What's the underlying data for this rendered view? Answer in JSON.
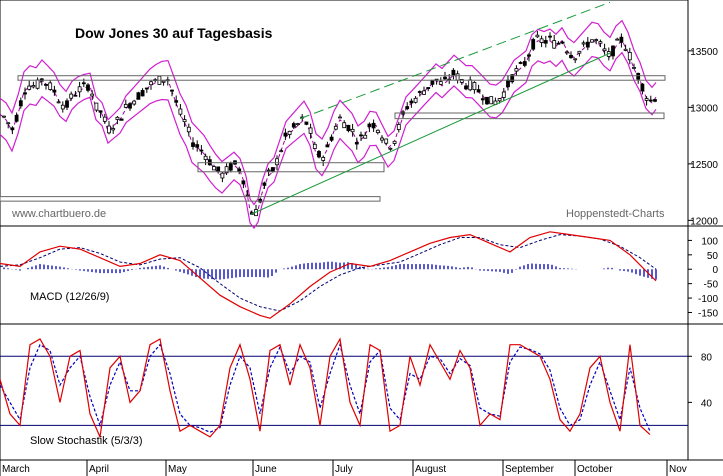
{
  "chart_data": [
    {
      "type": "candlestick",
      "title": "Dow Jones 30 auf Tagesbasis",
      "watermark_left": "www.chartbuero.de",
      "watermark_right": "Hoppenstedt-Charts",
      "ylim": [
        11950,
        13950
      ],
      "yticks": [
        "13500",
        "13000",
        "12500",
        "12000"
      ],
      "months": [
        "March",
        "April",
        "May",
        "June",
        "July",
        "August",
        "September",
        "October",
        "Nov"
      ],
      "close_path": [
        [
          0,
          12950
        ],
        [
          6,
          12900
        ],
        [
          12,
          12800
        ],
        [
          18,
          12950
        ],
        [
          24,
          13150
        ],
        [
          30,
          13200
        ],
        [
          36,
          13180
        ],
        [
          42,
          13250
        ],
        [
          48,
          13200
        ],
        [
          54,
          13150
        ],
        [
          60,
          13050
        ],
        [
          66,
          13000
        ],
        [
          72,
          13100
        ],
        [
          78,
          13150
        ],
        [
          84,
          13180
        ],
        [
          90,
          13200
        ],
        [
          96,
          13000
        ],
        [
          102,
          12950
        ],
        [
          108,
          12800
        ],
        [
          114,
          12850
        ],
        [
          120,
          12900
        ],
        [
          126,
          13000
        ],
        [
          132,
          13050
        ],
        [
          138,
          13100
        ],
        [
          144,
          13150
        ],
        [
          150,
          13200
        ],
        [
          156,
          13230
        ],
        [
          162,
          13250
        ],
        [
          168,
          13250
        ],
        [
          174,
          13100
        ],
        [
          180,
          12950
        ],
        [
          186,
          12850
        ],
        [
          192,
          12700
        ],
        [
          198,
          12650
        ],
        [
          204,
          12600
        ],
        [
          210,
          12520
        ],
        [
          216,
          12450
        ],
        [
          222,
          12400
        ],
        [
          228,
          12450
        ],
        [
          234,
          12500
        ],
        [
          240,
          12450
        ],
        [
          246,
          12300
        ],
        [
          250,
          12100
        ],
        [
          254,
          12050
        ],
        [
          258,
          12100
        ],
        [
          262,
          12250
        ],
        [
          268,
          12400
        ],
        [
          274,
          12450
        ],
        [
          280,
          12600
        ],
        [
          286,
          12750
        ],
        [
          292,
          12800
        ],
        [
          298,
          12850
        ],
        [
          304,
          12900
        ],
        [
          310,
          12800
        ],
        [
          316,
          12600
        ],
        [
          322,
          12550
        ],
        [
          328,
          12650
        ],
        [
          334,
          12800
        ],
        [
          340,
          12900
        ],
        [
          346,
          12850
        ],
        [
          352,
          12800
        ],
        [
          358,
          12700
        ],
        [
          364,
          12750
        ],
        [
          370,
          12850
        ],
        [
          376,
          12850
        ],
        [
          382,
          12750
        ],
        [
          388,
          12650
        ],
        [
          394,
          12700
        ],
        [
          400,
          12850
        ],
        [
          406,
          13000
        ],
        [
          412,
          13050
        ],
        [
          418,
          13100
        ],
        [
          424,
          13150
        ],
        [
          430,
          13200
        ],
        [
          436,
          13250
        ],
        [
          442,
          13200
        ],
        [
          448,
          13250
        ],
        [
          454,
          13300
        ],
        [
          460,
          13250
        ],
        [
          466,
          13200
        ],
        [
          472,
          13200
        ],
        [
          478,
          13150
        ],
        [
          484,
          13100
        ],
        [
          490,
          13050
        ],
        [
          496,
          13050
        ],
        [
          502,
          13100
        ],
        [
          508,
          13200
        ],
        [
          514,
          13300
        ],
        [
          520,
          13350
        ],
        [
          526,
          13400
        ],
        [
          532,
          13550
        ],
        [
          538,
          13600
        ],
        [
          544,
          13580
        ],
        [
          550,
          13600
        ],
        [
          556,
          13550
        ],
        [
          562,
          13600
        ],
        [
          568,
          13500
        ],
        [
          574,
          13450
        ],
        [
          580,
          13500
        ],
        [
          586,
          13550
        ],
        [
          592,
          13600
        ],
        [
          598,
          13580
        ],
        [
          604,
          13500
        ],
        [
          610,
          13450
        ],
        [
          616,
          13550
        ],
        [
          622,
          13600
        ],
        [
          628,
          13500
        ],
        [
          634,
          13350
        ],
        [
          640,
          13250
        ],
        [
          646,
          13100
        ],
        [
          652,
          13050
        ],
        [
          656,
          13100
        ]
      ]
    },
    {
      "type": "line",
      "label": "MACD (12/26/9)",
      "ylim": [
        -190,
        150
      ],
      "yticks": [
        "100",
        "50",
        "0",
        "-50",
        "-100",
        "-150"
      ],
      "macd": [
        [
          0,
          20
        ],
        [
          20,
          10
        ],
        [
          40,
          60
        ],
        [
          60,
          80
        ],
        [
          80,
          70
        ],
        [
          100,
          40
        ],
        [
          120,
          10
        ],
        [
          140,
          20
        ],
        [
          160,
          50
        ],
        [
          180,
          30
        ],
        [
          200,
          -30
        ],
        [
          220,
          -90
        ],
        [
          240,
          -130
        ],
        [
          260,
          -160
        ],
        [
          270,
          -170
        ],
        [
          290,
          -120
        ],
        [
          310,
          -60
        ],
        [
          330,
          -10
        ],
        [
          350,
          20
        ],
        [
          370,
          10
        ],
        [
          390,
          30
        ],
        [
          410,
          60
        ],
        [
          430,
          90
        ],
        [
          450,
          110
        ],
        [
          470,
          120
        ],
        [
          490,
          90
        ],
        [
          510,
          60
        ],
        [
          530,
          110
        ],
        [
          550,
          130
        ],
        [
          570,
          120
        ],
        [
          590,
          110
        ],
        [
          610,
          100
        ],
        [
          630,
          50
        ],
        [
          650,
          -20
        ],
        [
          656,
          -40
        ]
      ],
      "signal": [
        [
          0,
          10
        ],
        [
          20,
          15
        ],
        [
          40,
          40
        ],
        [
          60,
          70
        ],
        [
          80,
          75
        ],
        [
          100,
          55
        ],
        [
          120,
          25
        ],
        [
          140,
          15
        ],
        [
          160,
          35
        ],
        [
          180,
          40
        ],
        [
          200,
          5
        ],
        [
          220,
          -50
        ],
        [
          240,
          -100
        ],
        [
          260,
          -130
        ],
        [
          280,
          -145
        ],
        [
          300,
          -110
        ],
        [
          320,
          -60
        ],
        [
          340,
          -20
        ],
        [
          360,
          5
        ],
        [
          380,
          15
        ],
        [
          400,
          25
        ],
        [
          420,
          55
        ],
        [
          440,
          85
        ],
        [
          460,
          110
        ],
        [
          480,
          110
        ],
        [
          500,
          85
        ],
        [
          520,
          75
        ],
        [
          540,
          100
        ],
        [
          560,
          120
        ],
        [
          580,
          115
        ],
        [
          600,
          105
        ],
        [
          620,
          80
        ],
        [
          640,
          40
        ],
        [
          656,
          0
        ]
      ]
    },
    {
      "type": "line",
      "label": "Slow Stochastik (5/3/3)",
      "ylim": [
        0,
        100
      ],
      "yticks": [
        "80",
        "40"
      ],
      "levels": [
        80,
        20
      ],
      "k": [
        [
          0,
          60
        ],
        [
          10,
          30
        ],
        [
          20,
          20
        ],
        [
          30,
          90
        ],
        [
          40,
          95
        ],
        [
          50,
          80
        ],
        [
          60,
          40
        ],
        [
          70,
          80
        ],
        [
          80,
          85
        ],
        [
          90,
          30
        ],
        [
          100,
          10
        ],
        [
          110,
          70
        ],
        [
          120,
          80
        ],
        [
          130,
          40
        ],
        [
          140,
          50
        ],
        [
          150,
          90
        ],
        [
          160,
          95
        ],
        [
          170,
          50
        ],
        [
          180,
          15
        ],
        [
          190,
          20
        ],
        [
          200,
          15
        ],
        [
          210,
          10
        ],
        [
          220,
          20
        ],
        [
          230,
          70
        ],
        [
          240,
          90
        ],
        [
          250,
          60
        ],
        [
          260,
          15
        ],
        [
          270,
          85
        ],
        [
          280,
          90
        ],
        [
          290,
          55
        ],
        [
          300,
          90
        ],
        [
          310,
          70
        ],
        [
          320,
          20
        ],
        [
          330,
          80
        ],
        [
          340,
          95
        ],
        [
          350,
          40
        ],
        [
          360,
          20
        ],
        [
          370,
          90
        ],
        [
          380,
          85
        ],
        [
          390,
          15
        ],
        [
          400,
          20
        ],
        [
          410,
          80
        ],
        [
          420,
          55
        ],
        [
          430,
          90
        ],
        [
          440,
          75
        ],
        [
          450,
          60
        ],
        [
          460,
          85
        ],
        [
          470,
          70
        ],
        [
          480,
          20
        ],
        [
          490,
          30
        ],
        [
          500,
          25
        ],
        [
          510,
          90
        ],
        [
          520,
          90
        ],
        [
          530,
          85
        ],
        [
          540,
          80
        ],
        [
          550,
          60
        ],
        [
          560,
          25
        ],
        [
          570,
          15
        ],
        [
          580,
          30
        ],
        [
          590,
          70
        ],
        [
          600,
          80
        ],
        [
          610,
          40
        ],
        [
          620,
          15
        ],
        [
          630,
          90
        ],
        [
          640,
          20
        ],
        [
          650,
          12
        ]
      ],
      "d": [
        [
          0,
          55
        ],
        [
          10,
          40
        ],
        [
          20,
          25
        ],
        [
          30,
          70
        ],
        [
          40,
          90
        ],
        [
          50,
          85
        ],
        [
          60,
          55
        ],
        [
          70,
          70
        ],
        [
          80,
          80
        ],
        [
          90,
          45
        ],
        [
          100,
          20
        ],
        [
          110,
          55
        ],
        [
          120,
          75
        ],
        [
          130,
          50
        ],
        [
          140,
          50
        ],
        [
          150,
          80
        ],
        [
          160,
          90
        ],
        [
          170,
          65
        ],
        [
          180,
          30
        ],
        [
          190,
          20
        ],
        [
          200,
          18
        ],
        [
          210,
          14
        ],
        [
          220,
          18
        ],
        [
          230,
          55
        ],
        [
          240,
          80
        ],
        [
          250,
          70
        ],
        [
          260,
          30
        ],
        [
          270,
          70
        ],
        [
          280,
          88
        ],
        [
          290,
          65
        ],
        [
          300,
          80
        ],
        [
          310,
          75
        ],
        [
          320,
          35
        ],
        [
          330,
          65
        ],
        [
          340,
          90
        ],
        [
          350,
          55
        ],
        [
          360,
          30
        ],
        [
          370,
          75
        ],
        [
          380,
          85
        ],
        [
          390,
          35
        ],
        [
          400,
          25
        ],
        [
          410,
          65
        ],
        [
          420,
          60
        ],
        [
          430,
          80
        ],
        [
          440,
          78
        ],
        [
          450,
          65
        ],
        [
          460,
          78
        ],
        [
          470,
          72
        ],
        [
          480,
          35
        ],
        [
          490,
          30
        ],
        [
          500,
          28
        ],
        [
          510,
          75
        ],
        [
          520,
          88
        ],
        [
          530,
          86
        ],
        [
          540,
          82
        ],
        [
          550,
          68
        ],
        [
          560,
          35
        ],
        [
          570,
          20
        ],
        [
          580,
          25
        ],
        [
          590,
          55
        ],
        [
          600,
          75
        ],
        [
          610,
          50
        ],
        [
          620,
          25
        ],
        [
          630,
          70
        ],
        [
          640,
          35
        ],
        [
          650,
          15
        ]
      ]
    }
  ]
}
